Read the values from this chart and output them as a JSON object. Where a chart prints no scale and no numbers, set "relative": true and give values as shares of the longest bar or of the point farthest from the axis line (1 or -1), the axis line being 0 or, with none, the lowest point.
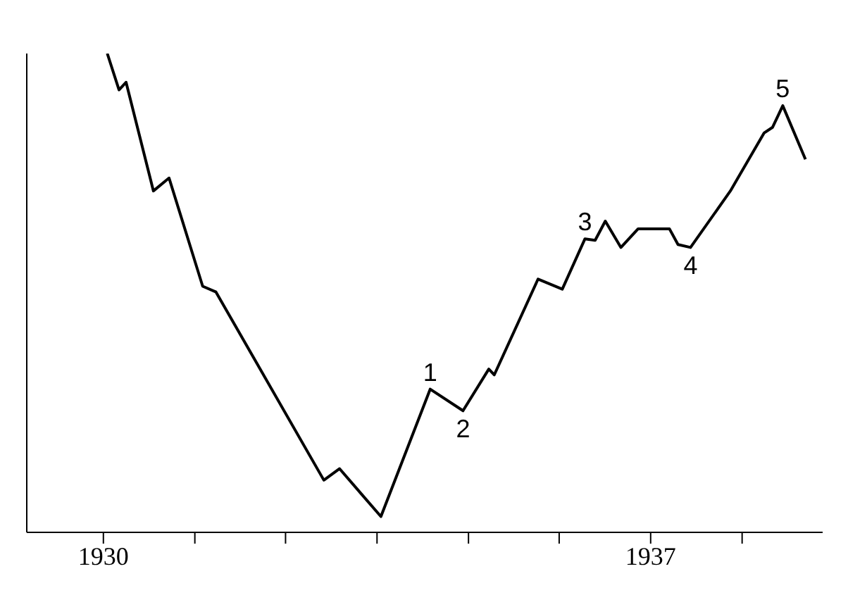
{
  "chart_data": {
    "type": "line",
    "relative": true,
    "color": "#000000",
    "x": [
      1930.05,
      1930.2,
      1930.29,
      1930.64,
      1930.84,
      1931.27,
      1931.44,
      1932.82,
      1933.02,
      1933.55,
      1934.18,
      1934.6,
      1934.93,
      1935.0,
      1935.56,
      1935.87,
      1936.16,
      1936.29,
      1936.42,
      1936.62,
      1936.84,
      1937.24,
      1937.35,
      1937.51,
      1938.02,
      1938.45,
      1938.56,
      1938.69,
      1938.98
    ],
    "values": [
      1.0,
      0.924,
      0.94,
      0.713,
      0.74,
      0.514,
      0.502,
      0.109,
      0.133,
      0.033,
      0.299,
      0.254,
      0.341,
      0.329,
      0.529,
      0.508,
      0.613,
      0.61,
      0.65,
      0.595,
      0.634,
      0.634,
      0.601,
      0.595,
      0.713,
      0.834,
      0.846,
      0.891,
      0.779
    ],
    "xlim": [
      1929.02,
      1939.2
    ],
    "xticks": [
      1930,
      {
        "value": 1931.17,
        "label": null
      },
      {
        "value": 1932.33,
        "label": null
      },
      {
        "value": 1933.5,
        "label": null
      },
      {
        "value": 1934.67,
        "label": null
      },
      {
        "value": 1935.83,
        "label": null
      },
      1937,
      {
        "value": 1938.17,
        "label": null
      }
    ],
    "annotations": [
      {
        "text": "1",
        "x": 1934.18,
        "y": 0.299
      },
      {
        "text": "2",
        "x": 1934.6,
        "y": 0.254
      },
      {
        "text": "3",
        "x": 1936.16,
        "y": 0.613
      },
      {
        "text": "4",
        "x": 1937.51,
        "y": 0.595
      },
      {
        "text": "5",
        "x": 1938.69,
        "y": 0.891
      }
    ],
    "grid": false,
    "marker": "none",
    "line_style": "solid"
  }
}
